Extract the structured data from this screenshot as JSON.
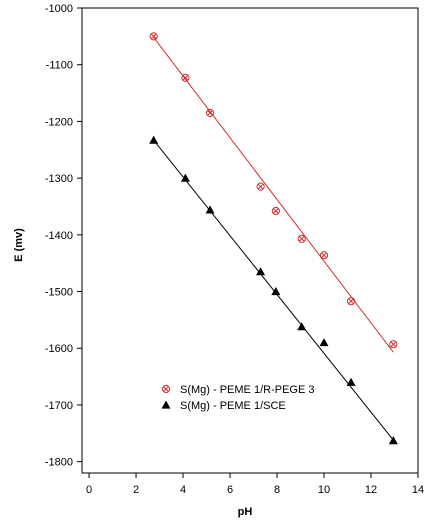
{
  "chart_data": {
    "type": "scatter",
    "title": "",
    "xlabel": "pH",
    "ylabel": "E (mv)",
    "xlim": [
      -0.3,
      14
    ],
    "ylim": [
      -1820,
      -1000
    ],
    "xticks": [
      "0",
      "2",
      "4",
      "6",
      "8",
      "10",
      "12",
      "14"
    ],
    "yticks": [
      "-1000",
      "-1100",
      "-1200",
      "-1300",
      "-1400",
      "-1500",
      "-1600",
      "-1700",
      "-1800"
    ],
    "grid": false,
    "legend_position": "bottom-center",
    "series": [
      {
        "name": "S(Mg) - PEME 1/R-PEGE 3",
        "marker": "circle-x",
        "color": "#d03030",
        "x": [
          2.75,
          4.1,
          5.15,
          7.3,
          7.95,
          9.05,
          10.0,
          11.15,
          12.95
        ],
        "y": [
          -1050,
          -1123,
          -1185,
          -1315,
          -1358,
          -1407,
          -1436,
          -1517,
          -1593
        ],
        "fit": {
          "x": [
            2.75,
            12.95
          ],
          "y": [
            -1052,
            -1607
          ]
        }
      },
      {
        "name": "S(Mg) - PEME 1/SCE",
        "marker": "triangle",
        "color": "#000000",
        "x": [
          2.75,
          4.1,
          5.15,
          7.3,
          7.95,
          9.05,
          10.0,
          11.15,
          12.95
        ],
        "y": [
          -1233,
          -1300,
          -1356,
          -1465,
          -1500,
          -1562,
          -1590,
          -1660,
          -1763
        ],
        "fit": {
          "x": [
            2.75,
            12.95
          ],
          "y": [
            -1233,
            -1762
          ]
        }
      }
    ]
  }
}
